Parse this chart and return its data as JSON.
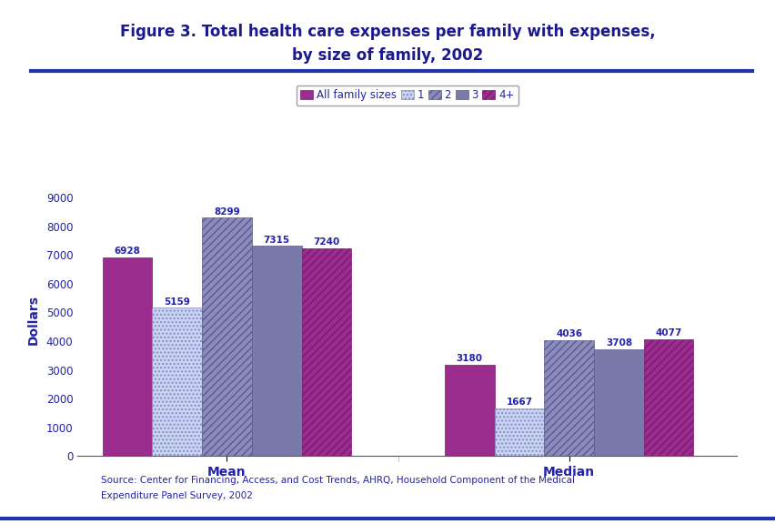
{
  "title_line1": "Figure 3. Total health care expenses per family with expenses,",
  "title_line2": "by size of family, 2002",
  "title_color": "#1a1a8c",
  "ylabel": "Dollars",
  "ylabel_color": "#2222aa",
  "background_color": "#ffffff",
  "categories": [
    "Mean",
    "Median"
  ],
  "series_labels": [
    "All family sizes",
    "1",
    "2",
    "3",
    "4+"
  ],
  "values_mean": [
    6928,
    5159,
    8299,
    7315,
    7240
  ],
  "values_median": [
    3180,
    1667,
    4036,
    3708,
    4077
  ],
  "face_colors": [
    "#9b2d8e",
    "#c8d4f0",
    "#8a8abc",
    "#7a7aaa",
    "#9b2d8e"
  ],
  "edge_colors": [
    "#7a1a70",
    "#8888cc",
    "#5a5a8a",
    "#5a5a8a",
    "#7a1a70"
  ],
  "hatches": [
    null,
    "....",
    "////",
    null,
    "////"
  ],
  "hatch_colors": [
    "#9b2d8e",
    "#aaaadd",
    "#9b2d8e",
    "#7a7aaa",
    "#9b2d8e"
  ],
  "ylim": [
    0,
    9500
  ],
  "yticks": [
    0,
    1000,
    2000,
    3000,
    4000,
    5000,
    6000,
    7000,
    8000,
    9000
  ],
  "source_text_line1": "Source: Center for Financing, Access, and Cost Trends, AHRQ, Household Component of the Medical",
  "source_text_line2": "Expenditure Panel Survey, 2002",
  "bar_width": 0.08,
  "group_centers": [
    0.3,
    0.85
  ]
}
